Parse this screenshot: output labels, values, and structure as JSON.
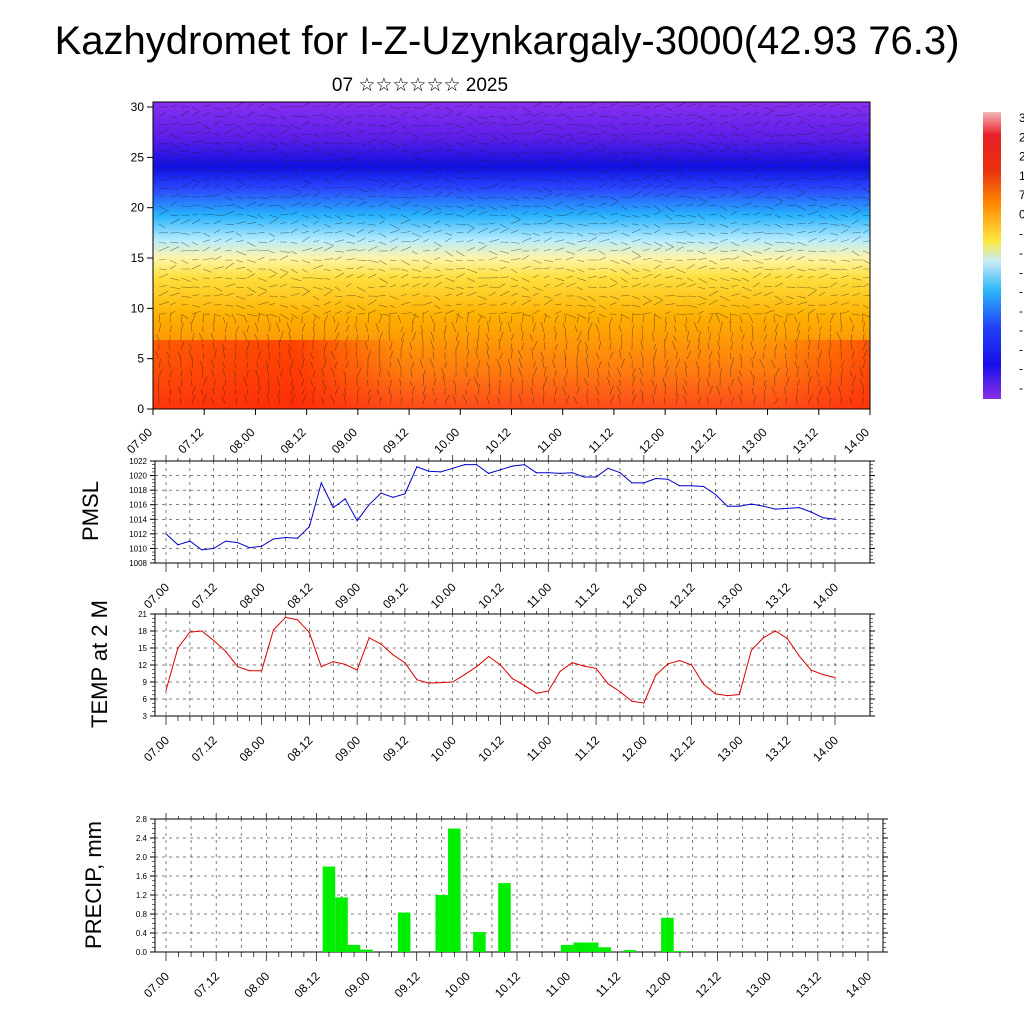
{
  "title": "Kazhydromet for I-Z-Uzynkargaly-3000(42.93 76.3)",
  "subtitle": "07 ☆☆☆☆☆☆ 2025",
  "colors": {
    "pmsl_line": "#0000cc",
    "temp_line": "#dd0000",
    "precip_bar": "#00ee00",
    "grid": "#000000"
  },
  "chart_data": [
    {
      "type": "heatmap",
      "name": "vertical-section",
      "x_ticks": [
        "07.00",
        "07.12",
        "08.00",
        "08.12",
        "09.00",
        "09.12",
        "10.00",
        "10.12",
        "11.00",
        "11.12",
        "12.00",
        "12.12",
        "13.00",
        "13.12",
        "14.00"
      ],
      "y_ticks": [
        "0",
        "5",
        "10",
        "15",
        "20",
        "25",
        "30"
      ],
      "ylim": [
        0,
        30.5
      ],
      "colorbar_ticks": [
        "3",
        "2",
        "2",
        "1",
        "7",
        "0",
        "-",
        "-",
        "-",
        "-",
        "-",
        "-",
        "-",
        "-",
        "-"
      ]
    },
    {
      "type": "line",
      "name": "pmsl",
      "ylabel": "PMSL",
      "x_ticks": [
        "07.00",
        "07.12",
        "08.00",
        "08.12",
        "09.00",
        "09.12",
        "10.00",
        "10.12",
        "11.00",
        "11.12",
        "12.00",
        "12.12",
        "13.00",
        "13.12",
        "14.00"
      ],
      "y_ticks": [
        "1008",
        "1010",
        "1012",
        "1014",
        "1016",
        "1018",
        "1020",
        "1022"
      ],
      "ylim": [
        1008,
        1022
      ],
      "values": [
        1012,
        1010.5,
        1011,
        1009.8,
        1010,
        1011,
        1010.8,
        1010.1,
        1010.3,
        1011.3,
        1011.5,
        1011.4,
        1013,
        1019,
        1015.6,
        1016.8,
        1013.8,
        1016,
        1017.6,
        1017,
        1017.5,
        1021.2,
        1020.6,
        1020.5,
        1021,
        1021.5,
        1021.5,
        1020.3,
        1020.8,
        1021.3,
        1021.5,
        1020.4,
        1020.4,
        1020.3,
        1020.4,
        1019.8,
        1019.8,
        1021,
        1020.4,
        1019,
        1019,
        1019.6,
        1019.5,
        1018.6,
        1018.6,
        1018.5,
        1017.4,
        1015.8,
        1015.8,
        1016.1,
        1015.8,
        1015.4,
        1015.5,
        1015.6,
        1015,
        1014.2,
        1014
      ]
    },
    {
      "type": "line",
      "name": "temp",
      "ylabel": "TEMP at 2 M",
      "x_ticks": [
        "07.00",
        "07.12",
        "08.00",
        "08.12",
        "09.00",
        "09.12",
        "10.00",
        "10.12",
        "11.00",
        "11.12",
        "12.00",
        "12.12",
        "13.00",
        "13.12",
        "14.00"
      ],
      "y_ticks": [
        "3",
        "6",
        "9",
        "12",
        "15",
        "18",
        "21"
      ],
      "ylim": [
        3,
        21
      ],
      "values": [
        7.5,
        15,
        17.8,
        18,
        16.3,
        14.4,
        11.7,
        11,
        11,
        18.2,
        20.4,
        20,
        17.7,
        11.7,
        12.6,
        12.1,
        11.1,
        16.8,
        15.7,
        13.8,
        12.4,
        9.4,
        8.8,
        8.9,
        9,
        10.3,
        11.7,
        13.5,
        12,
        9.6,
        8.4,
        7,
        7.4,
        10.9,
        12.4,
        11.8,
        11.4,
        8.7,
        7.3,
        5.6,
        5.3,
        10.2,
        12.2,
        12.8,
        12,
        8.6,
        6.9,
        6.6,
        6.8,
        14.6,
        16.8,
        18,
        16.7,
        13.6,
        11.1,
        10.3,
        9.8
      ]
    },
    {
      "type": "bar",
      "name": "precip",
      "ylabel": "PRECIP, mm",
      "x_ticks": [
        "07.00",
        "07.12",
        "08.00",
        "08.12",
        "09.00",
        "09.12",
        "10.00",
        "10.12",
        "11.00",
        "11.12",
        "12.00",
        "12.12",
        "13.00",
        "13.12",
        "14.00"
      ],
      "y_ticks": [
        "0.0",
        "0.4",
        "0.8",
        "1.2",
        "1.6",
        "2.0",
        "2.4",
        "2.8"
      ],
      "ylim": [
        0,
        2.8
      ],
      "values": [
        0,
        0,
        0,
        0,
        0,
        0,
        0,
        0,
        0,
        0,
        0,
        0,
        0,
        1.8,
        1.15,
        0.15,
        0.05,
        0,
        0,
        0.83,
        0,
        0,
        1.2,
        2.6,
        0,
        0.42,
        0,
        1.45,
        0,
        0,
        0,
        0,
        0.15,
        0.2,
        0.2,
        0.1,
        0,
        0.04,
        0,
        0,
        0.72,
        0.02,
        0,
        0,
        0,
        0,
        0,
        0,
        0,
        0,
        0,
        0,
        0,
        0,
        0,
        0,
        0
      ]
    }
  ]
}
